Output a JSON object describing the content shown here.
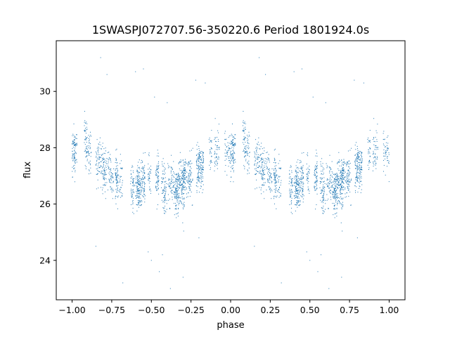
{
  "chart_data": {
    "type": "scatter",
    "title": "1SWASPJ072707.56-350220.6 Period 1801924.0s",
    "xlabel": "phase",
    "ylabel": "flux",
    "xlim": [
      -1.1,
      1.1
    ],
    "ylim": [
      22.6,
      31.8
    ],
    "x_ticks": [
      -1.0,
      -0.75,
      -0.5,
      -0.25,
      0.0,
      0.25,
      0.5,
      0.75,
      1.0
    ],
    "x_tick_labels": [
      "−1.00",
      "−0.75",
      "−0.50",
      "−0.25",
      "0.00",
      "0.25",
      "0.50",
      "0.75",
      "1.00"
    ],
    "y_ticks": [
      24,
      26,
      28,
      30
    ],
    "y_tick_labels": [
      "24",
      "26",
      "28",
      "30"
    ],
    "grid": false,
    "point_color": "#1f77b4",
    "series": [
      {
        "values_description": "phase-folded light curve, mirrored: phase -1..0 repeats 0..1",
        "phase_flux_profile": [
          [
            0.0,
            27.9
          ],
          [
            0.05,
            28.1
          ],
          [
            0.1,
            28.0
          ],
          [
            0.15,
            27.6
          ],
          [
            0.2,
            27.2
          ],
          [
            0.25,
            27.0
          ],
          [
            0.3,
            26.7
          ],
          [
            0.35,
            26.5
          ],
          [
            0.4,
            26.6
          ],
          [
            0.45,
            26.7
          ],
          [
            0.5,
            26.7
          ],
          [
            0.55,
            26.7
          ],
          [
            0.6,
            26.6
          ],
          [
            0.65,
            26.5
          ],
          [
            0.7,
            26.8
          ],
          [
            0.75,
            27.1
          ],
          [
            0.8,
            27.3
          ],
          [
            0.85,
            27.5
          ],
          [
            0.9,
            27.7
          ],
          [
            0.95,
            27.9
          ],
          [
            1.0,
            27.9
          ]
        ],
        "scatter_sigma": 0.55,
        "points_per_half": 1700
      }
    ],
    "outliers": [
      [
        -0.82,
        31.2
      ],
      [
        -0.78,
        30.6
      ],
      [
        -0.6,
        30.7
      ],
      [
        -0.55,
        30.8
      ],
      [
        -0.48,
        29.8
      ],
      [
        -0.4,
        29.6
      ],
      [
        -0.22,
        30.4
      ],
      [
        -0.16,
        30.3
      ],
      [
        0.18,
        31.2
      ],
      [
        0.22,
        30.6
      ],
      [
        0.4,
        30.7
      ],
      [
        0.45,
        30.8
      ],
      [
        0.52,
        29.8
      ],
      [
        0.6,
        29.6
      ],
      [
        0.78,
        30.4
      ],
      [
        0.84,
        30.3
      ],
      [
        -0.52,
        24.3
      ],
      [
        -0.5,
        24.0
      ],
      [
        -0.45,
        23.6
      ],
      [
        -0.43,
        24.2
      ],
      [
        0.48,
        24.3
      ],
      [
        0.5,
        24.0
      ],
      [
        0.55,
        23.6
      ],
      [
        0.57,
        24.2
      ],
      [
        -0.68,
        23.2
      ],
      [
        0.32,
        23.2
      ],
      [
        -0.3,
        23.4
      ],
      [
        0.7,
        23.4
      ],
      [
        0.62,
        23.0
      ],
      [
        -0.38,
        23.0
      ],
      [
        -0.85,
        24.5
      ],
      [
        0.15,
        24.5
      ],
      [
        -0.2,
        24.8
      ],
      [
        0.8,
        24.8
      ]
    ]
  }
}
